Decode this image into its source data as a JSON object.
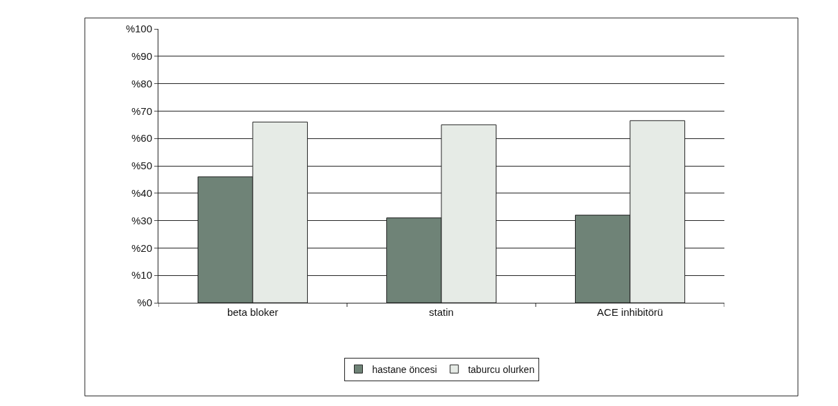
{
  "chart_data": {
    "type": "bar",
    "categories": [
      "beta bloker",
      "statin",
      "ACE inhibitörü"
    ],
    "series": [
      {
        "name": "hastane öncesi",
        "color": "#6f8377",
        "values": [
          46,
          31,
          32
        ]
      },
      {
        "name": "taburcu olurken",
        "color": "#e6ebe6",
        "values": [
          66,
          65,
          66.5
        ]
      }
    ],
    "ylim": [
      0,
      100
    ],
    "yticks": [
      {
        "value": 0,
        "label": "%0"
      },
      {
        "value": 10,
        "label": "%10"
      },
      {
        "value": 20,
        "label": "%20"
      },
      {
        "value": 30,
        "label": "%30"
      },
      {
        "value": 40,
        "label": "%40"
      },
      {
        "value": 50,
        "label": "%50"
      },
      {
        "value": 60,
        "label": "%60"
      },
      {
        "value": 70,
        "label": "%70"
      },
      {
        "value": 80,
        "label": "%80"
      },
      {
        "value": 90,
        "label": "%90"
      },
      {
        "value": 100,
        "label": "%100"
      }
    ],
    "grid": "y",
    "legend": "bottom"
  }
}
